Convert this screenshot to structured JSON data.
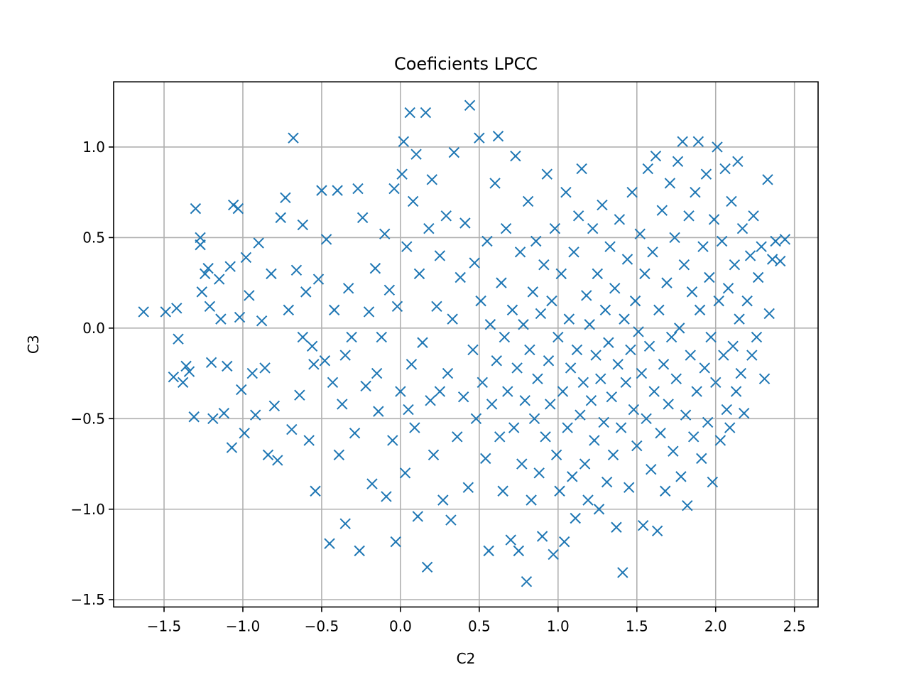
{
  "chart_data": {
    "type": "scatter",
    "title": "Coeficients LPCC",
    "xlabel": "C2",
    "ylabel": "C3",
    "xlim": [
      -1.82,
      2.65
    ],
    "ylim": [
      -1.54,
      1.36
    ],
    "xticks": [
      -1.5,
      -1.0,
      -0.5,
      0.0,
      0.5,
      1.0,
      1.5,
      2.0,
      2.5
    ],
    "xtick_labels": [
      "−1.5",
      "−1.0",
      "−0.5",
      "0.0",
      "0.5",
      "1.0",
      "1.5",
      "2.0",
      "2.5"
    ],
    "yticks": [
      -1.5,
      -1.0,
      -0.5,
      0.0,
      0.5,
      1.0
    ],
    "ytick_labels": [
      "−1.5",
      "−1.0",
      "−0.5",
      "0.0",
      "0.5",
      "1.0"
    ],
    "grid": true,
    "marker": "x",
    "color": "#1f77b4",
    "series": [
      {
        "points": [
          [
            -1.63,
            0.09
          ],
          [
            -1.49,
            0.09
          ],
          [
            -1.42,
            0.11
          ],
          [
            -1.41,
            -0.06
          ],
          [
            -1.44,
            -0.27
          ],
          [
            -1.38,
            -0.3
          ],
          [
            -1.36,
            -0.21
          ],
          [
            -1.34,
            -0.24
          ],
          [
            -1.3,
            0.66
          ],
          [
            -1.27,
            0.5
          ],
          [
            -1.27,
            0.46
          ],
          [
            -1.26,
            0.2
          ],
          [
            -1.24,
            0.3
          ],
          [
            -1.22,
            0.33
          ],
          [
            -1.21,
            0.12
          ],
          [
            -1.2,
            -0.19
          ],
          [
            -1.19,
            -0.5
          ],
          [
            -1.31,
            -0.49
          ],
          [
            -1.15,
            0.27
          ],
          [
            -1.14,
            0.05
          ],
          [
            -1.12,
            -0.47
          ],
          [
            -1.1,
            -0.21
          ],
          [
            -1.08,
            0.34
          ],
          [
            -1.07,
            -0.66
          ],
          [
            -1.06,
            0.68
          ],
          [
            -1.03,
            0.66
          ],
          [
            -1.02,
            0.06
          ],
          [
            -1.01,
            -0.34
          ],
          [
            -0.99,
            -0.58
          ],
          [
            -0.98,
            0.39
          ],
          [
            -0.96,
            0.18
          ],
          [
            -0.94,
            -0.25
          ],
          [
            -0.92,
            -0.48
          ],
          [
            -0.9,
            0.47
          ],
          [
            -0.88,
            0.04
          ],
          [
            -0.86,
            -0.22
          ],
          [
            -0.84,
            -0.7
          ],
          [
            -0.82,
            0.3
          ],
          [
            -0.8,
            -0.43
          ],
          [
            -0.78,
            -0.73
          ],
          [
            -0.76,
            0.61
          ],
          [
            -0.73,
            0.72
          ],
          [
            -0.71,
            0.1
          ],
          [
            -0.69,
            -0.56
          ],
          [
            -0.68,
            1.05
          ],
          [
            -0.66,
            0.32
          ],
          [
            -0.64,
            -0.37
          ],
          [
            -0.62,
            0.57
          ],
          [
            -0.6,
            0.2
          ],
          [
            -0.58,
            -0.62
          ],
          [
            -0.56,
            -0.1
          ],
          [
            -0.54,
            -0.9
          ],
          [
            -0.52,
            0.27
          ],
          [
            -0.5,
            0.76
          ],
          [
            -0.48,
            -0.18
          ],
          [
            -0.47,
            0.49
          ],
          [
            -0.45,
            -1.19
          ],
          [
            -0.43,
            -0.3
          ],
          [
            -0.42,
            0.1
          ],
          [
            -0.4,
            0.76
          ],
          [
            -0.39,
            -0.7
          ],
          [
            -0.37,
            -0.42
          ],
          [
            -0.35,
            -1.08
          ],
          [
            -0.33,
            0.22
          ],
          [
            -0.31,
            -0.05
          ],
          [
            -0.29,
            -0.58
          ],
          [
            -0.27,
            0.77
          ],
          [
            -0.26,
            -1.23
          ],
          [
            -0.24,
            0.61
          ],
          [
            -0.22,
            -0.32
          ],
          [
            -0.2,
            0.09
          ],
          [
            -0.18,
            -0.86
          ],
          [
            -0.16,
            0.33
          ],
          [
            -0.14,
            -0.46
          ],
          [
            -0.12,
            -0.05
          ],
          [
            -0.1,
            0.52
          ],
          [
            -0.09,
            -0.93
          ],
          [
            -0.07,
            0.21
          ],
          [
            -0.05,
            -0.62
          ],
          [
            -0.04,
            0.77
          ],
          [
            -0.03,
            -1.18
          ],
          [
            -0.02,
            0.12
          ],
          [
            0.0,
            -0.35
          ],
          [
            0.01,
            0.85
          ],
          [
            0.02,
            1.03
          ],
          [
            0.03,
            -0.8
          ],
          [
            0.04,
            0.45
          ],
          [
            0.06,
            1.19
          ],
          [
            0.07,
            -0.2
          ],
          [
            0.08,
            0.7
          ],
          [
            0.09,
            -0.55
          ],
          [
            0.1,
            0.96
          ],
          [
            0.11,
            -1.04
          ],
          [
            0.12,
            0.3
          ],
          [
            0.14,
            -0.08
          ],
          [
            0.16,
            1.19
          ],
          [
            0.17,
            -1.32
          ],
          [
            0.18,
            0.55
          ],
          [
            0.19,
            -0.4
          ],
          [
            0.2,
            0.82
          ],
          [
            0.21,
            -0.7
          ],
          [
            0.23,
            0.12
          ],
          [
            0.25,
            0.4
          ],
          [
            0.27,
            -0.95
          ],
          [
            0.29,
            0.62
          ],
          [
            0.3,
            -0.25
          ],
          [
            0.32,
            -1.06
          ],
          [
            0.33,
            0.05
          ],
          [
            0.34,
            0.97
          ],
          [
            0.36,
            -0.6
          ],
          [
            0.38,
            0.28
          ],
          [
            0.4,
            -0.38
          ],
          [
            0.41,
            0.58
          ],
          [
            0.43,
            -0.88
          ],
          [
            0.44,
            1.23
          ],
          [
            0.46,
            -0.12
          ],
          [
            0.47,
            0.36
          ],
          [
            0.48,
            -0.5
          ],
          [
            0.5,
            1.05
          ],
          [
            0.51,
            0.15
          ],
          [
            0.52,
            -0.3
          ],
          [
            0.54,
            -0.72
          ],
          [
            0.55,
            0.48
          ],
          [
            0.56,
            -1.23
          ],
          [
            0.57,
            0.02
          ],
          [
            0.58,
            -0.42
          ],
          [
            0.6,
            0.8
          ],
          [
            0.61,
            -0.18
          ],
          [
            0.62,
            1.06
          ],
          [
            0.63,
            -0.6
          ],
          [
            0.64,
            0.25
          ],
          [
            0.65,
            -0.9
          ],
          [
            0.66,
            -0.05
          ],
          [
            0.67,
            0.55
          ],
          [
            0.68,
            -0.35
          ],
          [
            0.7,
            -1.17
          ],
          [
            0.71,
            0.1
          ],
          [
            0.72,
            -0.55
          ],
          [
            0.73,
            0.95
          ],
          [
            0.74,
            -0.22
          ],
          [
            0.75,
            -1.23
          ],
          [
            0.76,
            0.42
          ],
          [
            0.77,
            -0.75
          ],
          [
            0.78,
            0.02
          ],
          [
            0.79,
            -0.4
          ],
          [
            0.8,
            -1.4
          ],
          [
            0.81,
            0.7
          ],
          [
            0.82,
            -0.12
          ],
          [
            0.83,
            -0.95
          ],
          [
            0.84,
            0.2
          ],
          [
            0.85,
            -0.5
          ],
          [
            0.86,
            0.48
          ],
          [
            0.87,
            -0.28
          ],
          [
            0.88,
            -0.8
          ],
          [
            0.89,
            0.08
          ],
          [
            0.9,
            -1.15
          ],
          [
            0.91,
            0.35
          ],
          [
            0.92,
            -0.6
          ],
          [
            0.93,
            0.85
          ],
          [
            0.94,
            -0.18
          ],
          [
            0.95,
            -0.42
          ],
          [
            0.96,
            0.15
          ],
          [
            0.97,
            -1.25
          ],
          [
            0.98,
            0.55
          ],
          [
            0.99,
            -0.7
          ],
          [
            1.0,
            -0.05
          ],
          [
            1.01,
            -0.9
          ],
          [
            1.02,
            0.3
          ],
          [
            1.03,
            -0.35
          ],
          [
            1.04,
            -1.18
          ],
          [
            1.05,
            0.75
          ],
          [
            1.06,
            -0.55
          ],
          [
            1.07,
            0.05
          ],
          [
            1.08,
            -0.22
          ],
          [
            1.09,
            -0.82
          ],
          [
            1.1,
            0.42
          ],
          [
            1.11,
            -1.05
          ],
          [
            1.12,
            -0.12
          ],
          [
            1.13,
            0.62
          ],
          [
            1.14,
            -0.48
          ],
          [
            1.15,
            0.88
          ],
          [
            1.16,
            -0.3
          ],
          [
            1.17,
            -0.75
          ],
          [
            1.18,
            0.18
          ],
          [
            1.19,
            -0.95
          ],
          [
            1.2,
            0.02
          ],
          [
            1.21,
            -0.4
          ],
          [
            1.22,
            0.55
          ],
          [
            1.23,
            -0.62
          ],
          [
            1.24,
            -0.15
          ],
          [
            1.25,
            0.3
          ],
          [
            1.26,
            -1.0
          ],
          [
            1.27,
            -0.28
          ],
          [
            1.28,
            0.68
          ],
          [
            1.29,
            -0.52
          ],
          [
            1.3,
            0.1
          ],
          [
            1.31,
            -0.85
          ],
          [
            1.32,
            -0.08
          ],
          [
            1.33,
            0.45
          ],
          [
            1.34,
            -0.38
          ],
          [
            1.35,
            -0.7
          ],
          [
            1.36,
            0.22
          ],
          [
            1.37,
            -1.1
          ],
          [
            1.38,
            -0.2
          ],
          [
            1.39,
            0.6
          ],
          [
            1.4,
            -0.55
          ],
          [
            1.41,
            -1.35
          ],
          [
            1.42,
            0.05
          ],
          [
            1.43,
            -0.3
          ],
          [
            1.44,
            0.38
          ],
          [
            1.45,
            -0.88
          ],
          [
            1.46,
            -0.12
          ],
          [
            1.47,
            0.75
          ],
          [
            1.48,
            -0.45
          ],
          [
            1.49,
            0.15
          ],
          [
            1.5,
            -0.65
          ],
          [
            1.51,
            -0.02
          ],
          [
            1.52,
            0.52
          ],
          [
            1.53,
            -0.25
          ],
          [
            1.54,
            -1.09
          ],
          [
            1.55,
            0.3
          ],
          [
            1.56,
            -0.5
          ],
          [
            1.57,
            0.88
          ],
          [
            1.58,
            -0.1
          ],
          [
            1.59,
            -0.78
          ],
          [
            1.6,
            0.42
          ],
          [
            1.61,
            -0.35
          ],
          [
            1.62,
            0.95
          ],
          [
            1.63,
            -1.12
          ],
          [
            1.64,
            0.1
          ],
          [
            1.65,
            -0.58
          ],
          [
            1.66,
            0.65
          ],
          [
            1.67,
            -0.2
          ],
          [
            1.68,
            -0.9
          ],
          [
            1.69,
            0.25
          ],
          [
            1.7,
            -0.42
          ],
          [
            1.71,
            0.8
          ],
          [
            1.72,
            -0.05
          ],
          [
            1.73,
            -0.68
          ],
          [
            1.74,
            0.5
          ],
          [
            1.75,
            -0.28
          ],
          [
            1.76,
            0.92
          ],
          [
            1.77,
            0.0
          ],
          [
            1.78,
            -0.82
          ],
          [
            1.79,
            1.03
          ],
          [
            1.8,
            0.35
          ],
          [
            1.81,
            -0.48
          ],
          [
            1.82,
            -0.98
          ],
          [
            1.83,
            0.62
          ],
          [
            1.84,
            -0.15
          ],
          [
            1.85,
            0.2
          ],
          [
            1.86,
            -0.6
          ],
          [
            1.87,
            0.75
          ],
          [
            1.88,
            -0.35
          ],
          [
            1.89,
            1.03
          ],
          [
            1.9,
            0.1
          ],
          [
            1.91,
            -0.72
          ],
          [
            1.92,
            0.45
          ],
          [
            1.93,
            -0.22
          ],
          [
            1.94,
            0.85
          ],
          [
            1.95,
            -0.52
          ],
          [
            1.96,
            0.28
          ],
          [
            1.97,
            -0.05
          ],
          [
            1.98,
            -0.85
          ],
          [
            1.99,
            0.6
          ],
          [
            2.0,
            -0.3
          ],
          [
            2.01,
            1.0
          ],
          [
            2.02,
            0.15
          ],
          [
            2.03,
            -0.62
          ],
          [
            2.04,
            0.48
          ],
          [
            2.05,
            -0.15
          ],
          [
            2.06,
            0.88
          ],
          [
            2.07,
            -0.45
          ],
          [
            2.08,
            0.22
          ],
          [
            2.09,
            -0.55
          ],
          [
            2.1,
            0.7
          ],
          [
            2.11,
            -0.1
          ],
          [
            2.12,
            0.35
          ],
          [
            2.13,
            -0.35
          ],
          [
            2.14,
            0.92
          ],
          [
            2.15,
            0.05
          ],
          [
            2.16,
            -0.25
          ],
          [
            2.17,
            0.55
          ],
          [
            2.18,
            -0.47
          ],
          [
            2.2,
            0.15
          ],
          [
            2.22,
            0.4
          ],
          [
            2.23,
            -0.15
          ],
          [
            2.24,
            0.62
          ],
          [
            2.26,
            -0.05
          ],
          [
            2.27,
            0.28
          ],
          [
            2.29,
            0.45
          ],
          [
            2.31,
            -0.28
          ],
          [
            2.33,
            0.82
          ],
          [
            2.34,
            0.08
          ],
          [
            2.36,
            0.38
          ],
          [
            2.38,
            0.48
          ],
          [
            2.41,
            0.37
          ],
          [
            2.44,
            0.49
          ],
          [
            -0.62,
            -0.05
          ],
          [
            -0.55,
            -0.2
          ],
          [
            -0.35,
            -0.15
          ],
          [
            -0.15,
            -0.25
          ],
          [
            0.05,
            -0.45
          ],
          [
            0.25,
            -0.35
          ]
        ]
      }
    ]
  }
}
